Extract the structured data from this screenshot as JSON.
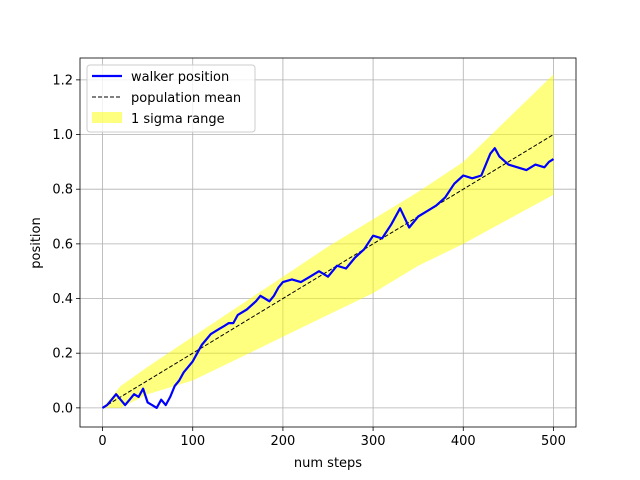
{
  "chart_data": {
    "type": "line",
    "title": "",
    "xlabel": "num steps",
    "ylabel": "position",
    "xlim": [
      -25,
      525
    ],
    "ylim": [
      -0.07,
      1.28
    ],
    "xticks": [
      0,
      100,
      200,
      300,
      400,
      500
    ],
    "yticks": [
      0.0,
      0.2,
      0.4,
      0.6,
      0.8,
      1.0,
      1.2
    ],
    "xtick_labels": [
      "0",
      "100",
      "200",
      "300",
      "400",
      "500"
    ],
    "ytick_labels": [
      "0.0",
      "0.2",
      "0.4",
      "0.6",
      "0.8",
      "1.0",
      "1.2"
    ],
    "grid": true,
    "legend_position": "top-left",
    "series": [
      {
        "name": "walker position",
        "kind": "line",
        "color": "#0000ff",
        "x": [
          0,
          5,
          10,
          15,
          20,
          25,
          30,
          35,
          40,
          45,
          50,
          55,
          60,
          65,
          70,
          75,
          80,
          85,
          90,
          95,
          100,
          105,
          110,
          115,
          120,
          125,
          130,
          135,
          140,
          145,
          150,
          160,
          170,
          175,
          180,
          185,
          190,
          195,
          200,
          210,
          220,
          230,
          240,
          250,
          260,
          270,
          280,
          290,
          300,
          310,
          320,
          330,
          340,
          350,
          360,
          370,
          380,
          390,
          400,
          410,
          420,
          430,
          435,
          440,
          450,
          460,
          470,
          480,
          490,
          495,
          500
        ],
        "y": [
          0.0,
          0.01,
          0.03,
          0.05,
          0.03,
          0.01,
          0.03,
          0.05,
          0.04,
          0.07,
          0.02,
          0.01,
          0.0,
          0.03,
          0.01,
          0.04,
          0.08,
          0.1,
          0.13,
          0.15,
          0.17,
          0.2,
          0.23,
          0.25,
          0.27,
          0.28,
          0.29,
          0.3,
          0.31,
          0.31,
          0.34,
          0.36,
          0.39,
          0.41,
          0.4,
          0.39,
          0.41,
          0.44,
          0.46,
          0.47,
          0.46,
          0.48,
          0.5,
          0.48,
          0.52,
          0.51,
          0.55,
          0.58,
          0.63,
          0.62,
          0.67,
          0.73,
          0.66,
          0.7,
          0.72,
          0.74,
          0.77,
          0.82,
          0.85,
          0.84,
          0.85,
          0.93,
          0.95,
          0.92,
          0.89,
          0.88,
          0.87,
          0.89,
          0.88,
          0.9,
          0.91
        ]
      },
      {
        "name": "population mean",
        "kind": "line",
        "style": "dashed",
        "color": "#000000",
        "x": [
          0,
          500
        ],
        "y": [
          0.0,
          1.0
        ]
      },
      {
        "name": "1 sigma range",
        "kind": "band",
        "color": "#ffff00",
        "x": [
          0,
          20,
          50,
          100,
          150,
          200,
          250,
          300,
          350,
          400,
          450,
          500
        ],
        "upper": [
          0.0,
          0.08,
          0.15,
          0.26,
          0.37,
          0.48,
          0.59,
          0.69,
          0.79,
          0.9,
          1.06,
          1.22
        ],
        "lower": [
          0.0,
          0.0,
          0.05,
          0.1,
          0.18,
          0.26,
          0.34,
          0.42,
          0.52,
          0.6,
          0.69,
          0.78
        ]
      }
    ]
  }
}
